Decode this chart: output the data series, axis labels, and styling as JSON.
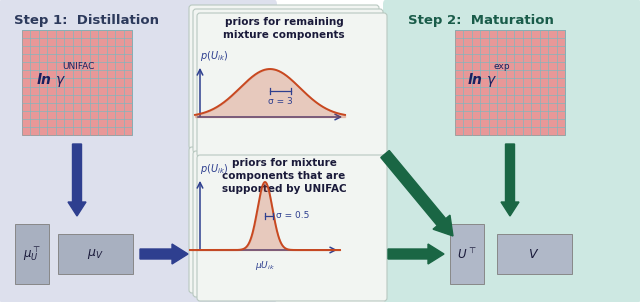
{
  "step1_bg": "#dde0ed",
  "step2_bg": "#cde8e2",
  "step1_title": "Step 1:  Distillation",
  "step2_title": "Step 2:  Maturation",
  "title_color": "#2d3a5c",
  "step2_title_color": "#1a5c4a",
  "unifac_color1": "#e89898",
  "unifac_color2": "#78b8c0",
  "blue_arrow": "#2e3f8f",
  "green_arrow": "#1a6644",
  "mu_box": "#a8b0c0",
  "uv_box": "#b0b8c8",
  "card_face": "#f2f5f2",
  "card_edge": "#b8c8c0",
  "curve_red": "#c84820",
  "axis_blue": "#2e3f8f",
  "text_dark": "#1a1a3a",
  "sigma3": "σ = 3",
  "sigma05": "σ = 0.5"
}
